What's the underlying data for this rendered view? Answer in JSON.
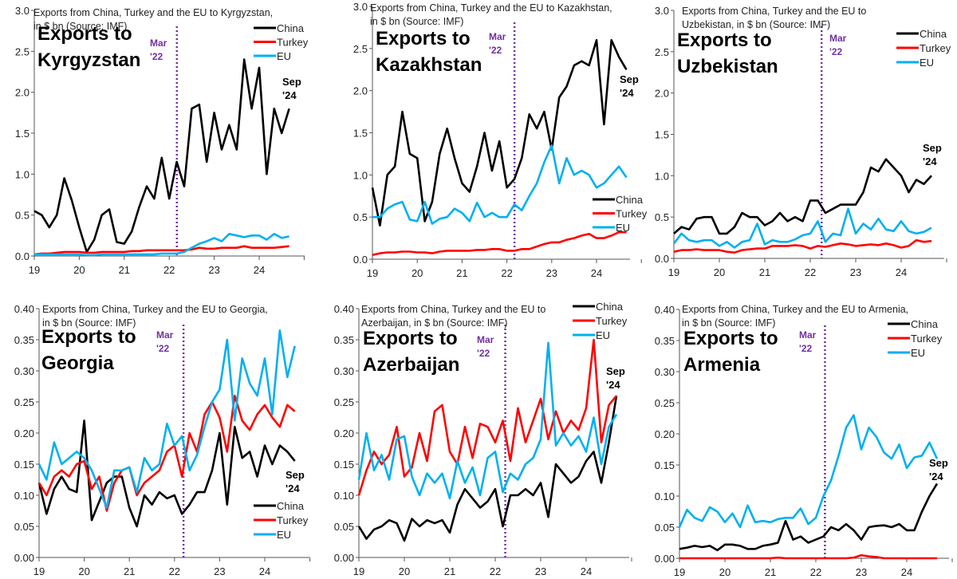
{
  "colors": {
    "China": "#000000",
    "Turkey": "#FF0000",
    "EU": "#00B0F0",
    "marker": "#7030A0"
  },
  "chart_data": [
    {
      "type": "line",
      "title": [
        "Exports from China, Turkey and the EU to Kyrgyzstan,",
        "in $ bn (Source: IMF)"
      ],
      "label": [
        "Exports to",
        "Kyrgyzstan"
      ],
      "x_start": 2019,
      "x_step_months": 2,
      "xticks": [
        "19",
        "20",
        "21",
        "22",
        "23",
        "24"
      ],
      "yticks": [
        "0.0",
        "0.5",
        "1.0",
        "1.5",
        "2.0",
        "2.5",
        "3.0"
      ],
      "ylim": [
        0,
        3
      ],
      "marker_line": {
        "x": 2022.17,
        "label": [
          "Mar",
          "'22"
        ]
      },
      "end_label": [
        "Sep",
        "'24"
      ],
      "legend": [
        "China",
        "Turkey",
        "EU"
      ],
      "series": [
        {
          "name": "China",
          "values": [
            0.55,
            0.5,
            0.35,
            0.5,
            0.95,
            0.68,
            0.35,
            0.05,
            0.2,
            0.5,
            0.57,
            0.17,
            0.15,
            0.3,
            0.6,
            0.85,
            0.7,
            1.2,
            0.7,
            1.15,
            0.85,
            1.8,
            1.85,
            1.15,
            1.75,
            1.3,
            1.6,
            1.3,
            2.4,
            1.8,
            2.3,
            1.0,
            1.8,
            1.5,
            1.8
          ]
        },
        {
          "name": "Turkey",
          "values": [
            0.02,
            0.03,
            0.03,
            0.04,
            0.05,
            0.05,
            0.05,
            0.04,
            0.04,
            0.05,
            0.05,
            0.05,
            0.05,
            0.06,
            0.06,
            0.07,
            0.07,
            0.07,
            0.07,
            0.07,
            0.07,
            0.08,
            0.1,
            0.09,
            0.09,
            0.1,
            0.1,
            0.1,
            0.12,
            0.1,
            0.1,
            0.1,
            0.1,
            0.11,
            0.12
          ]
        },
        {
          "name": "EU",
          "values": [
            0.02,
            0.02,
            0.02,
            0.02,
            0.02,
            0.02,
            0.02,
            0.01,
            0.01,
            0.02,
            0.02,
            0.02,
            0.02,
            0.02,
            0.02,
            0.02,
            0.02,
            0.03,
            0.03,
            0.03,
            0.05,
            0.1,
            0.15,
            0.18,
            0.22,
            0.18,
            0.27,
            0.25,
            0.23,
            0.25,
            0.25,
            0.2,
            0.27,
            0.22,
            0.24
          ]
        }
      ]
    },
    {
      "type": "line",
      "title": [
        "Exports from China, Turkey and the EU to Kazakhstan,",
        "in $ bn (Source: IMF)"
      ],
      "label": [
        "Exports to",
        "Kazakhstan"
      ],
      "x_start": 2019,
      "x_step_months": 2,
      "xticks": [
        "19",
        "20",
        "21",
        "22",
        "23",
        "24"
      ],
      "yticks": [
        "0.0",
        "0.5",
        "1.0",
        "1.5",
        "2.0",
        "2.5",
        "3.0"
      ],
      "ylim": [
        0,
        3
      ],
      "marker_line": {
        "x": 2022.17,
        "label": [
          "Mar",
          "'22"
        ]
      },
      "end_label": [
        "Sep",
        "'24"
      ],
      "legend": [
        "China",
        "Turkey",
        "EU"
      ],
      "series": [
        {
          "name": "China",
          "values": [
            0.85,
            0.4,
            1.0,
            1.1,
            1.75,
            1.25,
            1.2,
            0.45,
            0.68,
            1.25,
            1.55,
            1.2,
            0.9,
            0.8,
            1.1,
            1.5,
            1.05,
            1.4,
            0.85,
            0.95,
            1.2,
            1.72,
            1.55,
            1.75,
            1.3,
            1.92,
            2.05,
            2.3,
            2.35,
            2.3,
            2.6,
            1.6,
            2.6,
            2.4,
            2.25
          ]
        },
        {
          "name": "Turkey",
          "values": [
            0.05,
            0.07,
            0.08,
            0.08,
            0.09,
            0.09,
            0.08,
            0.08,
            0.07,
            0.09,
            0.1,
            0.1,
            0.1,
            0.1,
            0.11,
            0.11,
            0.12,
            0.12,
            0.1,
            0.1,
            0.12,
            0.12,
            0.15,
            0.18,
            0.2,
            0.2,
            0.23,
            0.25,
            0.28,
            0.3,
            0.25,
            0.25,
            0.28,
            0.32,
            0.32
          ]
        },
        {
          "name": "EU",
          "values": [
            0.5,
            0.5,
            0.6,
            0.65,
            0.68,
            0.47,
            0.45,
            0.68,
            0.42,
            0.48,
            0.5,
            0.6,
            0.55,
            0.45,
            0.67,
            0.5,
            0.55,
            0.5,
            0.5,
            0.65,
            0.58,
            0.75,
            0.9,
            1.15,
            1.35,
            0.9,
            1.2,
            1.0,
            1.05,
            1.0,
            0.85,
            0.9,
            1.0,
            1.1,
            0.97
          ]
        }
      ]
    },
    {
      "type": "line",
      "title": [
        "Exports from China, Turkey and the EU to",
        "Uzbekistan, in $ bn (Source: IMF)"
      ],
      "label": [
        "Exports to",
        "Uzbekistan"
      ],
      "x_start": 2019,
      "x_step_months": 2,
      "xticks": [
        "19",
        "20",
        "21",
        "22",
        "23",
        "24"
      ],
      "yticks": [
        "0.0",
        "0.5",
        "1.0",
        "1.5",
        "2.0",
        "2.5",
        "3.0"
      ],
      "ylim": [
        0,
        3
      ],
      "marker_line": {
        "x": 2022.25,
        "label": [
          "Mar",
          "'22"
        ]
      },
      "end_label": [
        "Sep",
        "'24"
      ],
      "legend": [
        "China",
        "Turkey",
        "EU"
      ],
      "series": [
        {
          "name": "China",
          "values": [
            0.3,
            0.38,
            0.35,
            0.48,
            0.5,
            0.5,
            0.3,
            0.3,
            0.38,
            0.55,
            0.5,
            0.5,
            0.4,
            0.45,
            0.55,
            0.45,
            0.5,
            0.45,
            0.7,
            0.7,
            0.55,
            0.6,
            0.65,
            0.65,
            0.65,
            0.8,
            1.1,
            1.05,
            1.2,
            1.1,
            1.0,
            0.8,
            0.95,
            0.9,
            1.0
          ]
        },
        {
          "name": "Turkey",
          "values": [
            0.08,
            0.1,
            0.1,
            0.11,
            0.1,
            0.1,
            0.1,
            0.08,
            0.07,
            0.1,
            0.11,
            0.12,
            0.12,
            0.15,
            0.15,
            0.15,
            0.16,
            0.15,
            0.12,
            0.15,
            0.14,
            0.16,
            0.18,
            0.17,
            0.15,
            0.16,
            0.17,
            0.16,
            0.18,
            0.16,
            0.13,
            0.15,
            0.22,
            0.2,
            0.21
          ]
        },
        {
          "name": "EU",
          "values": [
            0.18,
            0.3,
            0.22,
            0.2,
            0.22,
            0.22,
            0.15,
            0.2,
            0.13,
            0.2,
            0.22,
            0.42,
            0.17,
            0.22,
            0.2,
            0.2,
            0.23,
            0.28,
            0.3,
            0.45,
            0.2,
            0.3,
            0.28,
            0.6,
            0.3,
            0.42,
            0.35,
            0.48,
            0.35,
            0.33,
            0.45,
            0.33,
            0.3,
            0.32,
            0.37
          ]
        }
      ]
    },
    {
      "type": "line",
      "title": [
        "Exports from China, Turkey and the EU to Georgia,",
        "in $ bn (Source: IMF)"
      ],
      "label": [
        "Exports to",
        "Georgia"
      ],
      "x_start": 2019,
      "x_step_months": 2,
      "xticks": [
        "19",
        "20",
        "21",
        "22",
        "23",
        "24"
      ],
      "yticks": [
        "0.00",
        "0.05",
        "0.10",
        "0.15",
        "0.20",
        "0.25",
        "0.30",
        "0.35",
        "0.40"
      ],
      "ylim": [
        0,
        0.4
      ],
      "marker_line": {
        "x": 2022.2,
        "label": [
          "Mar",
          "'22"
        ]
      },
      "end_label": [
        "Sep",
        "'24"
      ],
      "legend": [
        "China",
        "Turkey",
        "EU"
      ],
      "series": [
        {
          "name": "China",
          "values": [
            0.12,
            0.07,
            0.11,
            0.13,
            0.11,
            0.105,
            0.22,
            0.06,
            0.09,
            0.12,
            0.13,
            0.13,
            0.08,
            0.05,
            0.1,
            0.085,
            0.105,
            0.095,
            0.1,
            0.07,
            0.085,
            0.105,
            0.105,
            0.14,
            0.2,
            0.085,
            0.21,
            0.16,
            0.17,
            0.13,
            0.18,
            0.15,
            0.18,
            0.17,
            0.155
          ]
        },
        {
          "name": "Turkey",
          "values": [
            0.12,
            0.1,
            0.13,
            0.14,
            0.13,
            0.15,
            0.155,
            0.11,
            0.13,
            0.075,
            0.12,
            0.14,
            0.145,
            0.1,
            0.12,
            0.13,
            0.14,
            0.17,
            0.18,
            0.13,
            0.2,
            0.17,
            0.23,
            0.25,
            0.225,
            0.17,
            0.26,
            0.22,
            0.205,
            0.23,
            0.245,
            0.225,
            0.21,
            0.245,
            0.235
          ]
        },
        {
          "name": "EU",
          "values": [
            0.15,
            0.125,
            0.185,
            0.15,
            0.16,
            0.17,
            0.16,
            0.14,
            0.11,
            0.08,
            0.14,
            0.14,
            0.145,
            0.105,
            0.16,
            0.14,
            0.15,
            0.215,
            0.18,
            0.195,
            0.14,
            0.165,
            0.21,
            0.25,
            0.27,
            0.35,
            0.22,
            0.32,
            0.28,
            0.26,
            0.32,
            0.23,
            0.365,
            0.29,
            0.34
          ]
        }
      ]
    },
    {
      "type": "line",
      "title": [
        "Exports from China, Turkey and the EU to",
        "Azerbaijan, in $ bn (Source: IMF)"
      ],
      "label": [
        "Exports to",
        "Azerbaijan"
      ],
      "x_start": 2019,
      "x_step_months": 2,
      "xticks": [
        "19",
        "20",
        "21",
        "22",
        "23",
        "24"
      ],
      "yticks": [
        "0.00",
        "0.05",
        "0.10",
        "0.15",
        "0.20",
        "0.25",
        "0.30",
        "0.35",
        "0.40"
      ],
      "ylim": [
        0,
        0.4
      ],
      "marker_line": {
        "x": 2022.22,
        "label": [
          "Mar",
          "'22"
        ]
      },
      "end_label": [
        "Sep",
        "'24"
      ],
      "legend": [
        "China",
        "Turkey",
        "EU"
      ],
      "series": [
        {
          "name": "China",
          "values": [
            0.05,
            0.03,
            0.045,
            0.05,
            0.06,
            0.055,
            0.027,
            0.062,
            0.05,
            0.06,
            0.055,
            0.06,
            0.04,
            0.085,
            0.11,
            0.095,
            0.08,
            0.09,
            0.11,
            0.05,
            0.1,
            0.1,
            0.11,
            0.1,
            0.12,
            0.065,
            0.15,
            0.135,
            0.12,
            0.13,
            0.155,
            0.17,
            0.12,
            0.185,
            0.26
          ]
        },
        {
          "name": "Turkey",
          "values": [
            0.1,
            0.14,
            0.17,
            0.15,
            0.165,
            0.21,
            0.13,
            0.145,
            0.2,
            0.155,
            0.235,
            0.245,
            0.17,
            0.15,
            0.21,
            0.16,
            0.215,
            0.21,
            0.185,
            0.22,
            0.155,
            0.24,
            0.185,
            0.22,
            0.255,
            0.19,
            0.235,
            0.2,
            0.22,
            0.205,
            0.24,
            0.35,
            0.185,
            0.245,
            0.26
          ]
        },
        {
          "name": "EU",
          "values": [
            0.125,
            0.2,
            0.14,
            0.165,
            0.125,
            0.19,
            0.195,
            0.13,
            0.1,
            0.135,
            0.12,
            0.135,
            0.095,
            0.155,
            0.12,
            0.145,
            0.1,
            0.16,
            0.17,
            0.105,
            0.135,
            0.125,
            0.15,
            0.16,
            0.19,
            0.345,
            0.18,
            0.2,
            0.18,
            0.195,
            0.17,
            0.225,
            0.15,
            0.21,
            0.23
          ]
        }
      ]
    },
    {
      "type": "line",
      "title": [
        "Exports from China, Turkey and the EU to Armenia,",
        "in $ bn (Source: IMF)"
      ],
      "label": [
        "Exports to",
        "Armenia"
      ],
      "x_start": 2019,
      "x_step_months": 2,
      "xticks": [
        "19",
        "20",
        "21",
        "22",
        "23",
        "24"
      ],
      "yticks": [
        "0.00",
        "0.05",
        "0.10",
        "0.15",
        "0.20",
        "0.25",
        "0.30",
        "0.35",
        "0.40"
      ],
      "ylim": [
        0,
        0.4
      ],
      "marker_line": {
        "x": 2022.2,
        "label": [
          "Mar",
          "'22"
        ]
      },
      "end_label": [
        "Sep",
        "'24"
      ],
      "legend": [
        "China",
        "Turkey",
        "EU"
      ],
      "series": [
        {
          "name": "China",
          "values": [
            0.015,
            0.017,
            0.02,
            0.018,
            0.02,
            0.013,
            0.022,
            0.022,
            0.02,
            0.015,
            0.015,
            0.02,
            0.022,
            0.025,
            0.06,
            0.03,
            0.035,
            0.025,
            0.03,
            0.035,
            0.05,
            0.045,
            0.055,
            0.045,
            0.03,
            0.05,
            0.052,
            0.053,
            0.05,
            0.055,
            0.045,
            0.045,
            0.075,
            0.1,
            0.12
          ]
        },
        {
          "name": "Turkey",
          "values": [
            0,
            0,
            0,
            0,
            0,
            0,
            0,
            0,
            0,
            0,
            0,
            0,
            0,
            0.001,
            0,
            0,
            0,
            0,
            0,
            0,
            0,
            0,
            0,
            0.001,
            0.005,
            0.003,
            0.002,
            0,
            0,
            0,
            0,
            0,
            0,
            0,
            0
          ]
        },
        {
          "name": "EU",
          "values": [
            0.05,
            0.078,
            0.065,
            0.06,
            0.082,
            0.075,
            0.058,
            0.072,
            0.05,
            0.085,
            0.058,
            0.06,
            0.058,
            0.063,
            0.065,
            0.065,
            0.08,
            0.055,
            0.065,
            0.1,
            0.125,
            0.165,
            0.21,
            0.23,
            0.175,
            0.21,
            0.195,
            0.17,
            0.16,
            0.183,
            0.145,
            0.162,
            0.165,
            0.186,
            0.16
          ]
        }
      ]
    }
  ]
}
